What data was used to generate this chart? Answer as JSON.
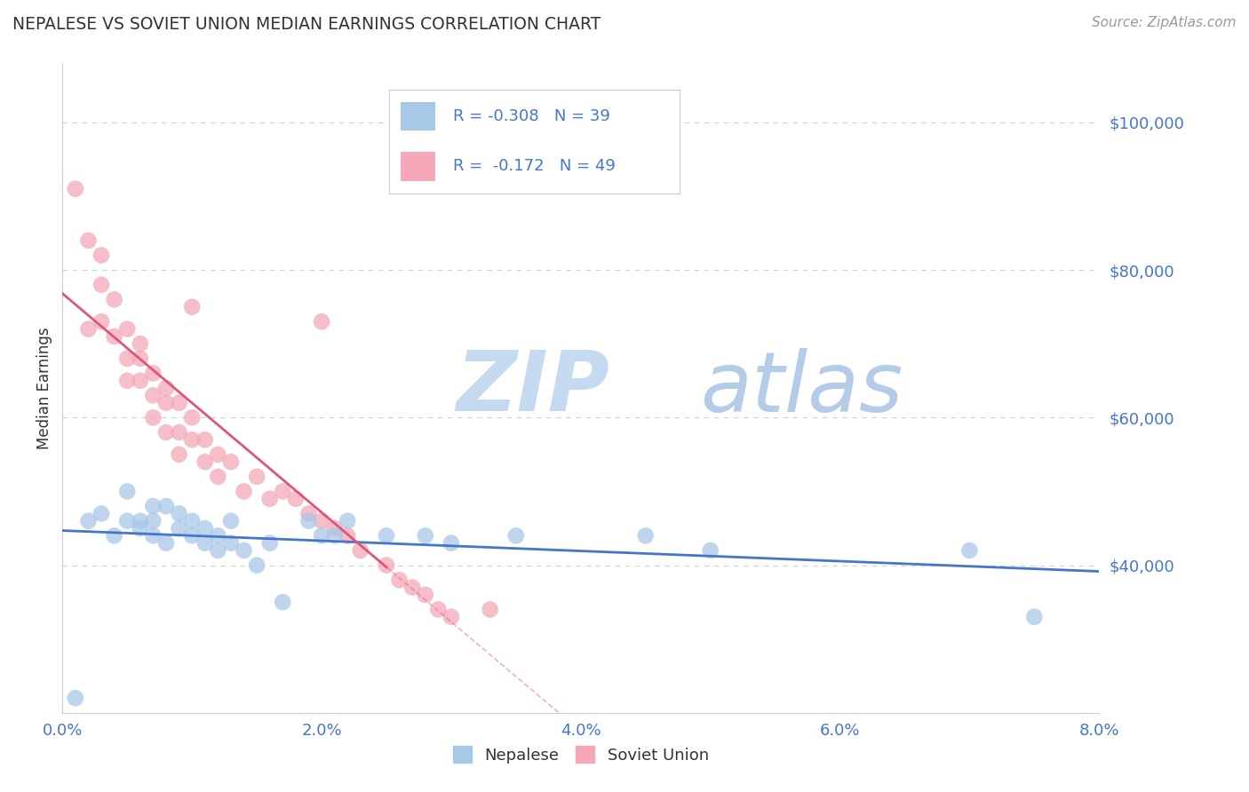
{
  "title": "NEPALESE VS SOVIET UNION MEDIAN EARNINGS CORRELATION CHART",
  "source_text": "Source: ZipAtlas.com",
  "ylabel": "Median Earnings",
  "xlim": [
    0.0,
    0.08
  ],
  "ylim": [
    20000,
    108000
  ],
  "yticks": [
    40000,
    60000,
    80000,
    100000
  ],
  "ytick_labels": [
    "$40,000",
    "$60,000",
    "$80,000",
    "$100,000"
  ],
  "xtick_labels": [
    "0.0%",
    "2.0%",
    "4.0%",
    "6.0%",
    "8.0%"
  ],
  "xticks": [
    0.0,
    0.02,
    0.04,
    0.06,
    0.08
  ],
  "nepalese_label": "Nepalese",
  "soviet_label": "Soviet Union",
  "nepalese_R": "-0.308",
  "nepalese_N": "39",
  "soviet_R": "-0.172",
  "soviet_N": "49",
  "nepalese_color": "#a8c8e8",
  "soviet_color": "#f4a8b8",
  "nepalese_line_color": "#4477cc",
  "soviet_line_color": "#dd5577",
  "background_color": "#ffffff",
  "title_color": "#333333",
  "tick_label_color": "#4477cc",
  "source_color": "#999999",
  "watermark_zip_color": "#c8ddf0",
  "watermark_atlas_color": "#b8cce8",
  "legend_text_color": "#333333",
  "legend_value_color": "#4477cc",
  "nepalese_x": [
    0.001,
    0.002,
    0.003,
    0.004,
    0.005,
    0.005,
    0.006,
    0.006,
    0.007,
    0.007,
    0.007,
    0.008,
    0.008,
    0.009,
    0.009,
    0.01,
    0.01,
    0.011,
    0.011,
    0.012,
    0.012,
    0.013,
    0.013,
    0.014,
    0.015,
    0.016,
    0.017,
    0.019,
    0.02,
    0.021,
    0.022,
    0.025,
    0.028,
    0.03,
    0.035,
    0.045,
    0.05,
    0.07,
    0.075
  ],
  "nepalese_y": [
    22000,
    46000,
    47000,
    44000,
    46000,
    50000,
    45000,
    46000,
    48000,
    44000,
    46000,
    43000,
    48000,
    47000,
    45000,
    44000,
    46000,
    43000,
    45000,
    42000,
    44000,
    46000,
    43000,
    42000,
    40000,
    43000,
    35000,
    46000,
    44000,
    44000,
    46000,
    44000,
    44000,
    43000,
    44000,
    44000,
    42000,
    42000,
    33000
  ],
  "soviet_x": [
    0.001,
    0.002,
    0.002,
    0.003,
    0.003,
    0.003,
    0.004,
    0.004,
    0.005,
    0.005,
    0.005,
    0.006,
    0.006,
    0.006,
    0.007,
    0.007,
    0.007,
    0.008,
    0.008,
    0.008,
    0.009,
    0.009,
    0.009,
    0.01,
    0.01,
    0.011,
    0.011,
    0.012,
    0.012,
    0.013,
    0.014,
    0.015,
    0.016,
    0.017,
    0.018,
    0.019,
    0.02,
    0.021,
    0.022,
    0.023,
    0.025,
    0.026,
    0.027,
    0.028,
    0.029,
    0.03,
    0.033,
    0.02,
    0.01
  ],
  "soviet_y": [
    91000,
    84000,
    72000,
    82000,
    78000,
    73000,
    76000,
    71000,
    72000,
    68000,
    65000,
    68000,
    65000,
    70000,
    66000,
    63000,
    60000,
    62000,
    58000,
    64000,
    62000,
    58000,
    55000,
    60000,
    57000,
    57000,
    54000,
    55000,
    52000,
    54000,
    50000,
    52000,
    49000,
    50000,
    49000,
    47000,
    46000,
    45000,
    44000,
    42000,
    40000,
    38000,
    37000,
    36000,
    34000,
    33000,
    34000,
    73000,
    75000
  ]
}
